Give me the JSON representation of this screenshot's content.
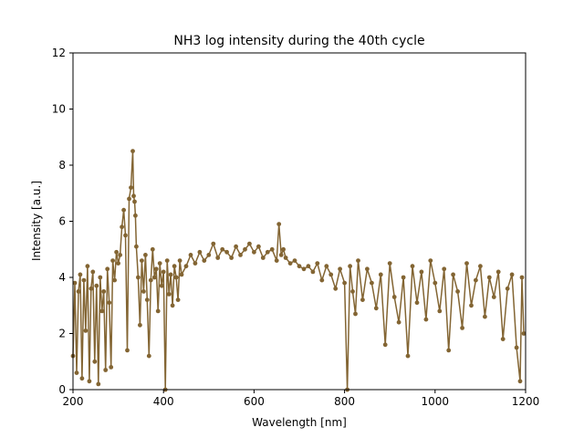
{
  "chart_data": {
    "type": "line",
    "title": "NH3 log intensity during the 40th cycle",
    "xlabel": "Wavelength [nm]",
    "ylabel": "Intensity [a.u.]",
    "xlim": [
      200,
      1200
    ],
    "ylim": [
      0,
      12
    ],
    "xticks": [
      200,
      400,
      600,
      800,
      1000,
      1200
    ],
    "yticks": [
      0,
      2,
      4,
      6,
      8,
      10,
      12
    ],
    "grid": false,
    "legend": "none",
    "marker": "circle",
    "color": "#836533",
    "series": [
      {
        "x": [
          200,
          204,
          208,
          212,
          216,
          220,
          224,
          228,
          232,
          236,
          240,
          244,
          248,
          252,
          256,
          260,
          264,
          268,
          272,
          276,
          280,
          284,
          288,
          292,
          296,
          300,
          304,
          308,
          312,
          316,
          320,
          324,
          328,
          332,
          334,
          336,
          338,
          340,
          344,
          348,
          352,
          356,
          360,
          364,
          368,
          372,
          376,
          380,
          384,
          388,
          392,
          396,
          400,
          404,
          408,
          412,
          416,
          420,
          424,
          428,
          432,
          436,
          440,
          450,
          460,
          470,
          480,
          490,
          500,
          510,
          520,
          530,
          540,
          550,
          560,
          570,
          580,
          590,
          600,
          610,
          620,
          630,
          640,
          650,
          655,
          660,
          665,
          670,
          680,
          690,
          700,
          710,
          720,
          730,
          740,
          750,
          760,
          770,
          780,
          790,
          800,
          806,
          812,
          818,
          824,
          830,
          840,
          850,
          860,
          870,
          880,
          890,
          900,
          910,
          920,
          930,
          940,
          950,
          960,
          970,
          980,
          990,
          1000,
          1010,
          1020,
          1030,
          1040,
          1050,
          1060,
          1070,
          1080,
          1090,
          1100,
          1110,
          1120,
          1130,
          1140,
          1150,
          1160,
          1170,
          1180,
          1188,
          1192,
          1196
        ],
        "y": [
          1.2,
          3.8,
          0.6,
          3.5,
          4.1,
          0.4,
          3.9,
          2.1,
          4.4,
          0.3,
          3.6,
          4.2,
          1.0,
          3.7,
          0.2,
          4.0,
          2.8,
          3.5,
          0.7,
          4.3,
          3.1,
          0.8,
          4.6,
          3.9,
          4.9,
          4.5,
          4.8,
          5.8,
          6.4,
          5.5,
          1.4,
          6.8,
          7.2,
          8.5,
          6.9,
          6.7,
          6.2,
          5.1,
          4.0,
          2.3,
          4.6,
          3.5,
          4.8,
          3.2,
          1.2,
          3.9,
          5.0,
          4.0,
          4.3,
          2.8,
          4.5,
          3.7,
          4.2,
          0.0,
          4.6,
          3.4,
          4.1,
          3.0,
          4.4,
          4.0,
          3.2,
          4.6,
          4.1,
          4.4,
          4.8,
          4.5,
          4.9,
          4.6,
          4.8,
          5.2,
          4.7,
          5.0,
          4.9,
          4.7,
          5.1,
          4.8,
          5.0,
          5.2,
          4.9,
          5.1,
          4.7,
          4.9,
          5.0,
          4.6,
          5.9,
          4.8,
          5.0,
          4.7,
          4.5,
          4.6,
          4.4,
          4.3,
          4.4,
          4.2,
          4.5,
          3.9,
          4.4,
          4.1,
          3.6,
          4.3,
          3.8,
          0.0,
          4.4,
          3.5,
          2.7,
          4.6,
          3.2,
          4.3,
          3.8,
          2.9,
          4.1,
          1.6,
          4.5,
          3.3,
          2.4,
          4.0,
          1.2,
          4.4,
          3.1,
          4.2,
          2.5,
          4.6,
          3.8,
          2.8,
          4.3,
          1.4,
          4.1,
          3.5,
          2.2,
          4.5,
          3.0,
          3.9,
          4.4,
          2.6,
          4.0,
          3.3,
          4.2,
          1.8,
          3.6,
          4.1,
          1.5,
          0.3,
          4.0,
          2.0
        ]
      }
    ]
  }
}
